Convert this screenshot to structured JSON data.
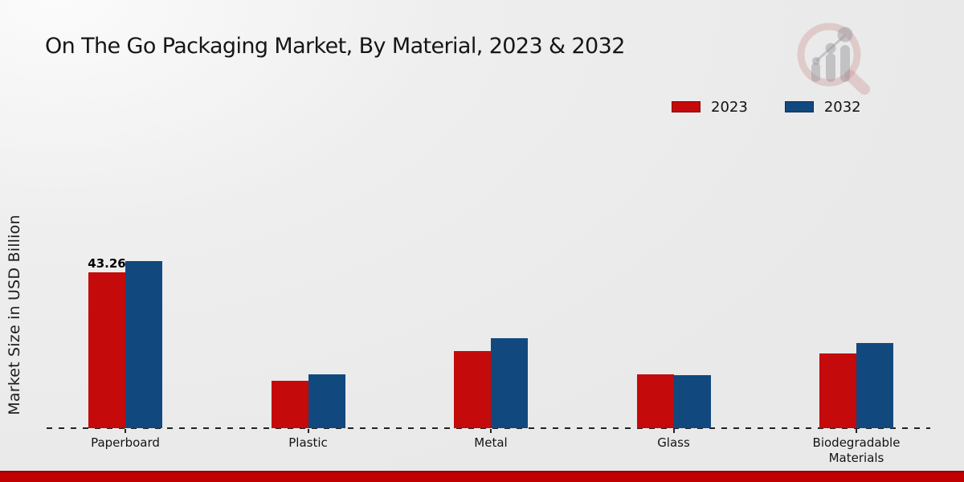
{
  "title": "On The Go Packaging Market, By Material, 2023 & 2032",
  "ylabel": "Market Size in USD Billion",
  "legend": [
    {
      "label": "2023",
      "color": "#c40a0a"
    },
    {
      "label": "2032",
      "color": "#11497e"
    }
  ],
  "chart_data": {
    "type": "bar",
    "title": "On The Go Packaging Market, By Material, 2023 & 2032",
    "xlabel": "",
    "ylabel": "Market Size in USD Billion",
    "categories": [
      "Paperboard",
      "Plastic",
      "Metal",
      "Glass",
      "Biodegradable Materials"
    ],
    "series": [
      {
        "name": "2023",
        "color": "#c40a0a",
        "values": [
          43.26,
          13.2,
          21.4,
          14.8,
          20.7
        ]
      },
      {
        "name": "2032",
        "color": "#11497e",
        "values": [
          46.2,
          14.8,
          24.8,
          14.6,
          23.6
        ]
      }
    ],
    "data_labels": [
      {
        "series": "2023",
        "category": "Paperboard",
        "text": "43.26"
      }
    ],
    "ylim": [
      0,
      50
    ],
    "grid": false,
    "baseline_style": "dashed",
    "legend_position": "top-right"
  },
  "colors": {
    "bar_2023": "#c40a0a",
    "bar_2032": "#11497e",
    "footer_strip": "#c00000",
    "baseline": "#222222",
    "background": "#ececec"
  },
  "watermark": {
    "name": "market-research-magnifier-logo"
  }
}
